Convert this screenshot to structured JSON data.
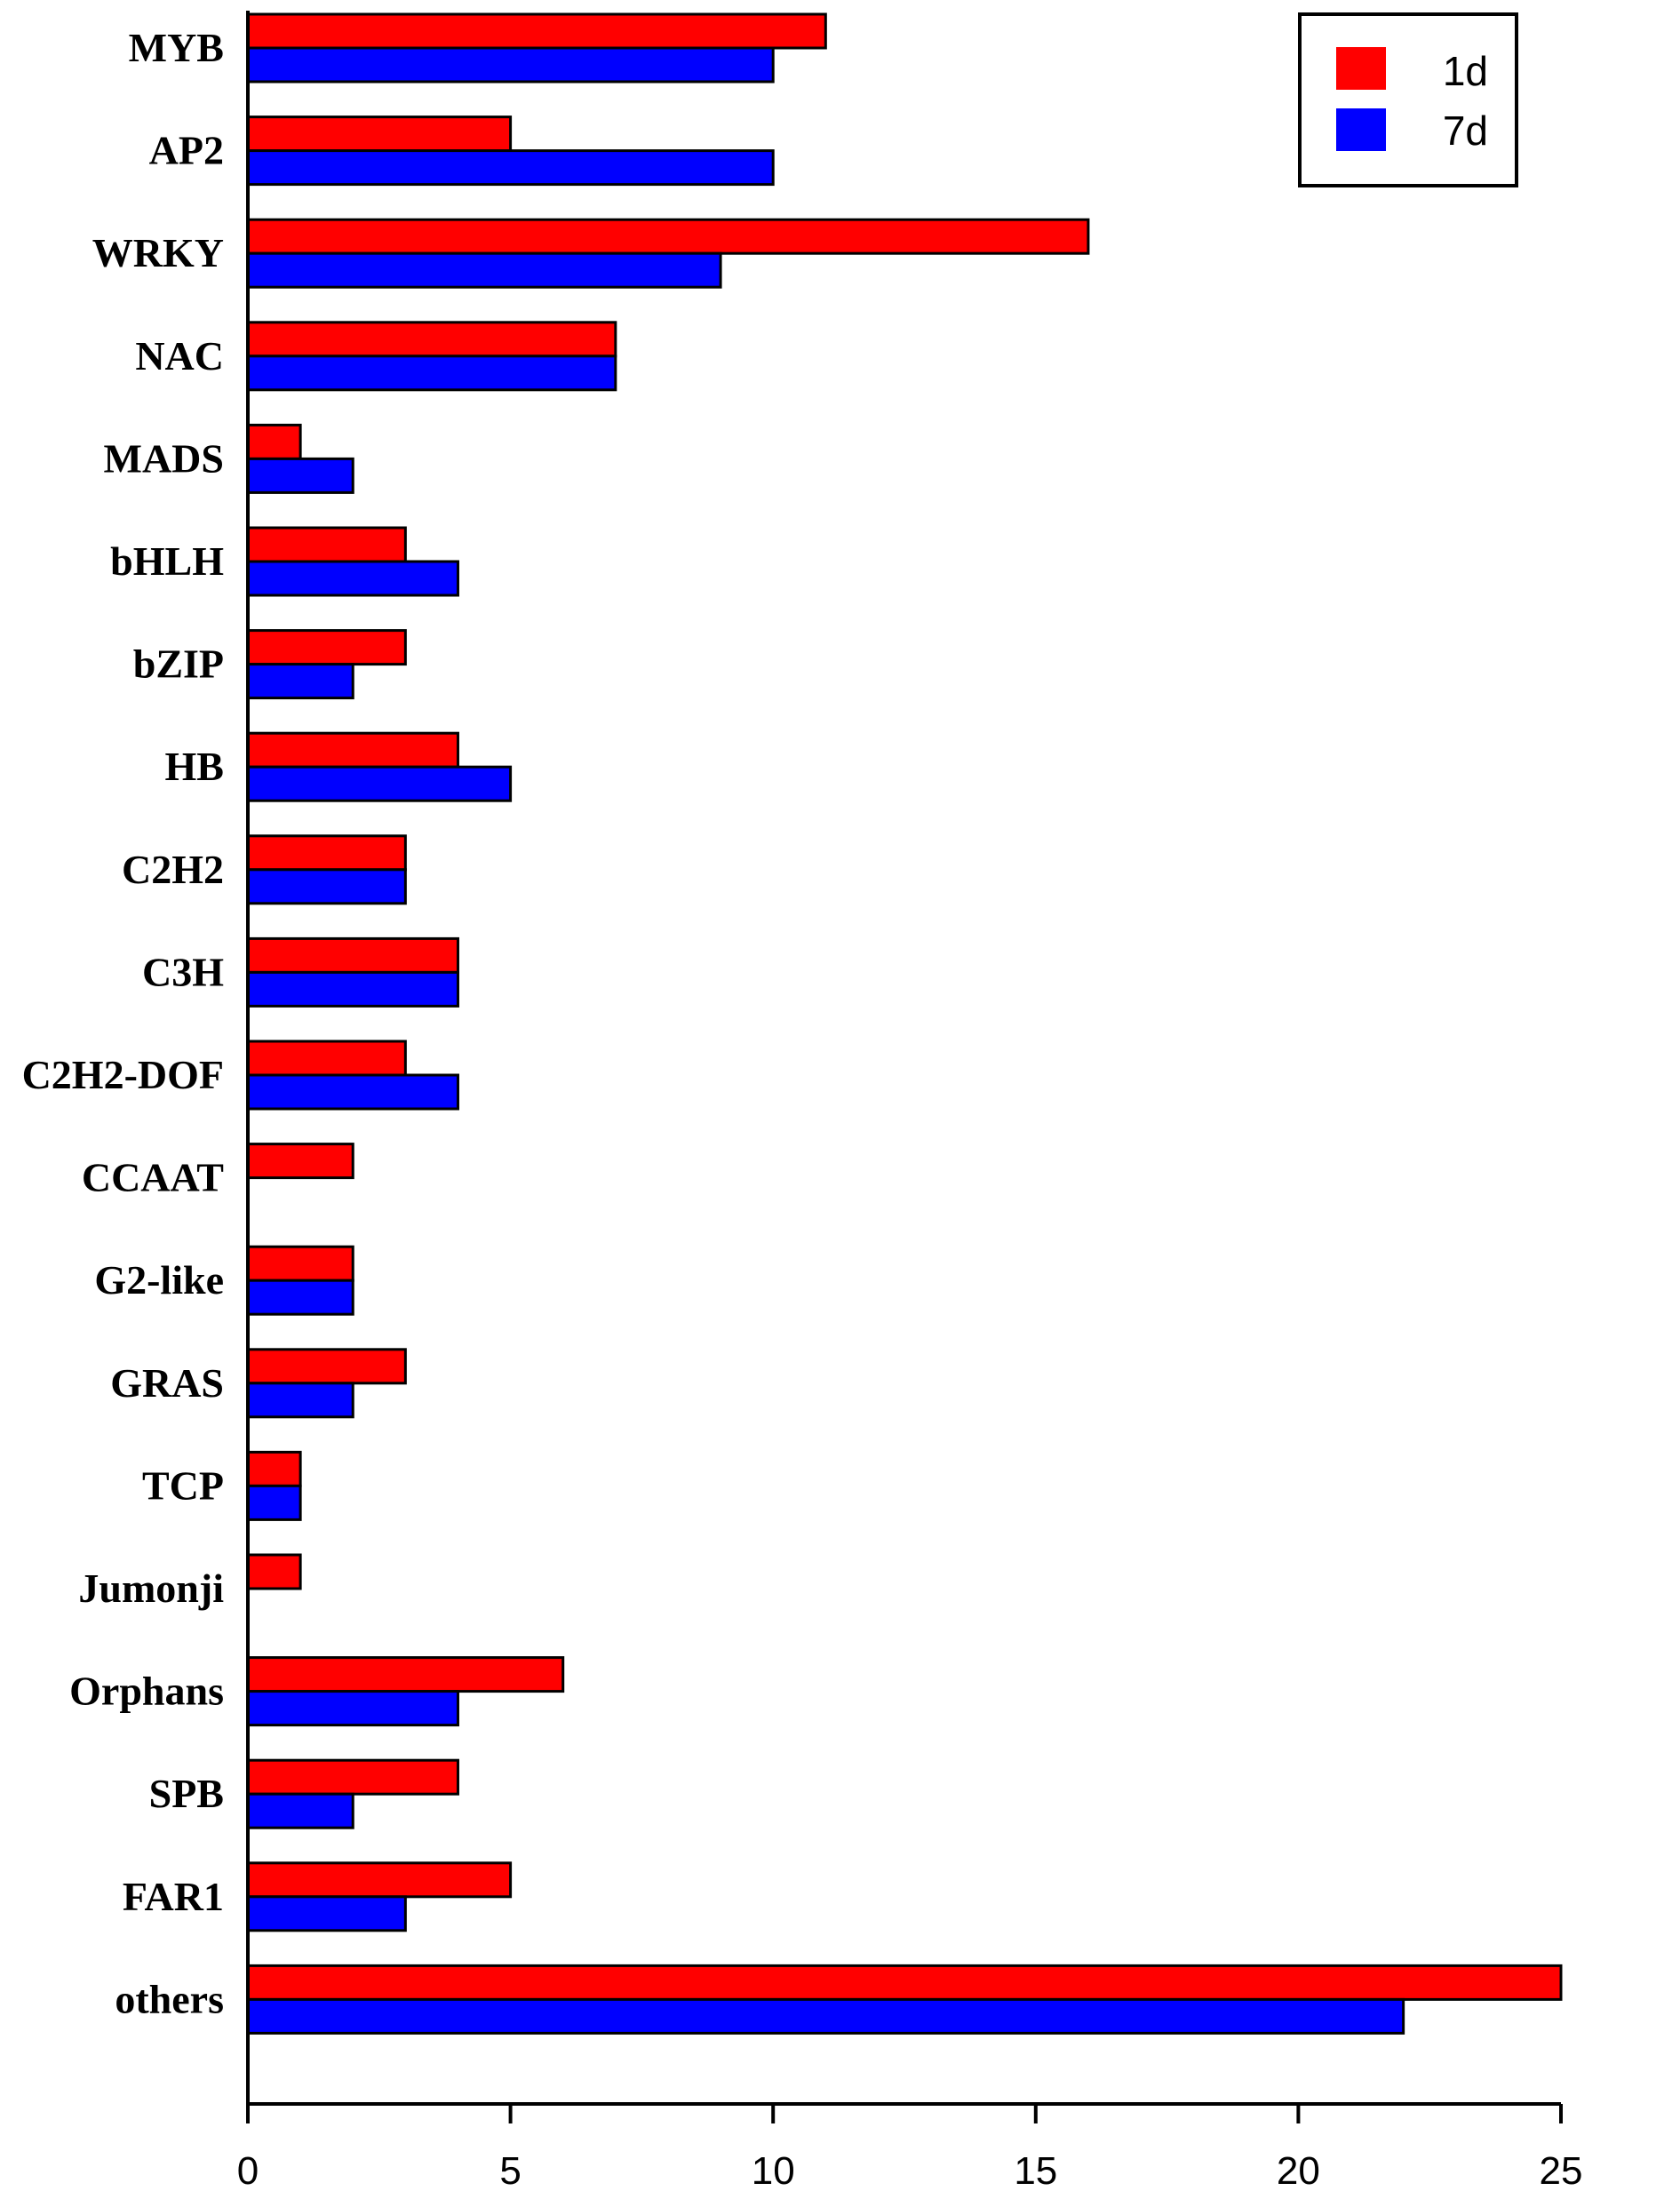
{
  "chart_data": {
    "type": "bar",
    "orientation": "horizontal",
    "title": "",
    "xlabel": "",
    "ylabel": "",
    "xlim": [
      0,
      25
    ],
    "x_ticks": [
      0,
      5,
      10,
      15,
      20,
      25
    ],
    "x_tick_labels": [
      "0",
      "5",
      "10",
      "15",
      "20",
      "25"
    ],
    "grid": false,
    "legend_position": "top-right",
    "categories": [
      "MYB",
      "AP2",
      "WRKY",
      "NAC",
      "MADS",
      "bHLH",
      "bZIP",
      "HB",
      "C2H2",
      "C3H",
      "C2H2-DOF",
      "CCAAT",
      "G2-like",
      "GRAS",
      "TCP",
      "Jumonji",
      "Orphans",
      "SPB",
      "FAR1",
      "others"
    ],
    "series": [
      {
        "name": "1d",
        "color": "#ff0000",
        "values": [
          11,
          5,
          16,
          7,
          1,
          3,
          3,
          4,
          3,
          4,
          3,
          2,
          2,
          3,
          1,
          1,
          6,
          4,
          5,
          25
        ]
      },
      {
        "name": "7d",
        "color": "#0000ff",
        "values": [
          10,
          10,
          9,
          7,
          2,
          4,
          2,
          5,
          3,
          4,
          4,
          0,
          2,
          2,
          1,
          0,
          4,
          2,
          3,
          22
        ]
      }
    ]
  }
}
